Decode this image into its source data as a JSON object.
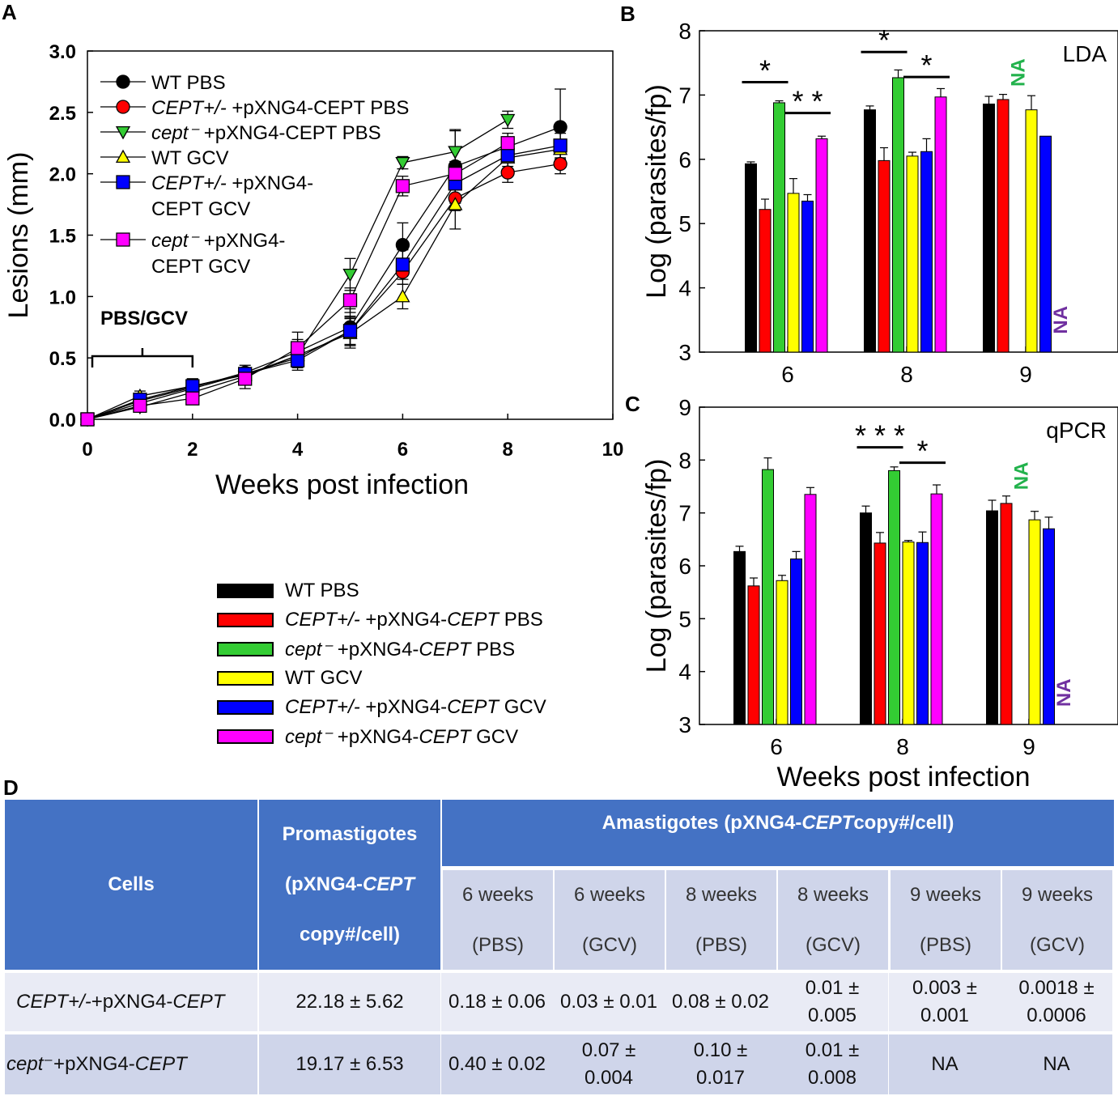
{
  "panels": {
    "a": {
      "letter": "A"
    },
    "b": {
      "letter": "B"
    },
    "c": {
      "letter": "C"
    },
    "d": {
      "letter": "D"
    }
  },
  "colors": {
    "wt_pbs": "#000000",
    "cept_het_pbs": "#ff0000",
    "cept_null_pbs": "#33cc33",
    "wt_gcv": "#ffff00",
    "cept_het_gcv": "#0000ff",
    "cept_null_gcv": "#ff00ff",
    "na_green": "#22b24c",
    "na_purple": "#7030a0",
    "table_header": "#4472c4"
  },
  "chart_data": [
    {
      "id": "A",
      "type": "line",
      "xlabel": "Weeks post infection",
      "ylabel": "Lesions (mm)",
      "xlim": [
        0,
        10
      ],
      "ylim": [
        0.0,
        3.0
      ],
      "xticks": [
        "0",
        "2",
        "4",
        "6",
        "8",
        "10"
      ],
      "yticks": [
        "0.0",
        "0.5",
        "1.0",
        "1.5",
        "2.0",
        "2.5",
        "3.0"
      ],
      "annotation": "PBS/GCV",
      "bracket_range": [
        0,
        2
      ],
      "series": [
        {
          "name": "WT PBS",
          "color_key": "wt_pbs",
          "marker": "circle",
          "x": [
            0,
            1,
            2,
            3,
            4,
            5,
            6,
            7,
            9
          ],
          "y": [
            0.0,
            0.15,
            0.26,
            0.38,
            0.55,
            0.75,
            1.42,
            2.06,
            2.38
          ],
          "err": [
            0,
            0.04,
            0.06,
            0.06,
            0.1,
            0.15,
            0.18,
            0.3,
            0.31
          ]
        },
        {
          "name": "CEPT+/- +pXNG4-CEPT PBS",
          "color_key": "cept_het_pbs",
          "marker": "circle",
          "x": [
            0,
            1,
            2,
            3,
            4,
            5,
            6,
            7,
            8,
            9
          ],
          "y": [
            0.0,
            0.13,
            0.25,
            0.37,
            0.5,
            0.72,
            1.2,
            1.8,
            2.01,
            2.08
          ],
          "err": [
            0,
            0.04,
            0.05,
            0.05,
            0.08,
            0.12,
            0.1,
            0.1,
            0.08,
            0.08
          ]
        },
        {
          "name": "cept⁻ +pXNG4-CEPT PBS",
          "color_key": "cept_null_pbs",
          "marker": "triangle-down",
          "x": [
            0,
            1,
            2,
            3,
            4,
            5,
            6,
            7,
            8
          ],
          "y": [
            0.0,
            0.1,
            0.22,
            0.35,
            0.52,
            1.18,
            2.09,
            2.18,
            2.44
          ],
          "err": [
            0,
            0.04,
            0.04,
            0.05,
            0.08,
            0.13,
            0.05,
            0.17,
            0.07
          ]
        },
        {
          "name": "WT GCV",
          "color_key": "wt_gcv",
          "marker": "triangle-up",
          "x": [
            0,
            1,
            2,
            3,
            4,
            5,
            6,
            7,
            8,
            9
          ],
          "y": [
            0.0,
            0.19,
            0.27,
            0.36,
            0.52,
            0.7,
            1.0,
            1.75,
            2.13,
            2.2
          ],
          "err": [
            0,
            0.04,
            0.06,
            0.06,
            0.09,
            0.12,
            0.1,
            0.2,
            0.09,
            0.08
          ]
        },
        {
          "name": "CEPT+/- +pXNG4-CEPT GCV",
          "color_key": "cept_het_gcv",
          "marker": "square",
          "x": [
            0,
            1,
            2,
            3,
            4,
            5,
            6,
            7,
            8,
            9
          ],
          "y": [
            0.0,
            0.16,
            0.27,
            0.37,
            0.48,
            0.72,
            1.26,
            1.92,
            2.15,
            2.23
          ],
          "err": [
            0,
            0.04,
            0.06,
            0.05,
            0.08,
            0.11,
            0.12,
            0.12,
            0.09,
            0.1
          ]
        },
        {
          "name": "cept⁻ +pXNG4-CEPT GCV",
          "color_key": "cept_null_gcv",
          "marker": "square",
          "x": [
            0,
            1,
            2,
            3,
            4,
            5,
            6,
            7,
            8
          ],
          "y": [
            0.0,
            0.11,
            0.17,
            0.33,
            0.58,
            0.97,
            1.9,
            2.0,
            2.25
          ],
          "err": [
            0,
            0.04,
            0.05,
            0.08,
            0.13,
            0.1,
            0.08,
            0.1,
            0.08
          ]
        }
      ],
      "legend": {
        "placement": "top-left",
        "entries": [
          {
            "marker": "circle",
            "color_key": "wt_pbs",
            "lines": [
              [
                {
                  "t": "WT PBS",
                  "i": false
                }
              ]
            ]
          },
          {
            "marker": "circle",
            "color_key": "cept_het_pbs",
            "lines": [
              [
                {
                  "t": "CEPT+/-",
                  "i": true
                },
                {
                  "t": " +pXNG4-CEPT PBS",
                  "i": false
                }
              ]
            ]
          },
          {
            "marker": "triangle-down",
            "color_key": "cept_null_pbs",
            "lines": [
              [
                {
                  "t": "cept⁻",
                  "i": true
                },
                {
                  "t": " +pXNG4-CEPT PBS",
                  "i": false
                }
              ]
            ]
          },
          {
            "marker": "triangle-up",
            "color_key": "wt_gcv",
            "lines": [
              [
                {
                  "t": "WT GCV",
                  "i": false
                }
              ]
            ]
          },
          {
            "marker": "square",
            "color_key": "cept_het_gcv",
            "lines": [
              [
                {
                  "t": "CEPT+/-",
                  "i": true
                },
                {
                  "t": " +pXNG4-",
                  "i": false
                }
              ],
              [
                {
                  "t": "CEPT GCV",
                  "i": false
                }
              ]
            ]
          },
          {
            "marker": "square",
            "color_key": "cept_null_gcv",
            "lines": [
              [
                {
                  "t": "cept⁻",
                  "i": true
                },
                {
                  "t": " +pXNG4-",
                  "i": false
                }
              ],
              [
                {
                  "t": "CEPT GCV",
                  "i": false
                }
              ]
            ]
          }
        ]
      }
    },
    {
      "id": "B",
      "type": "bar",
      "title": "LDA",
      "xlabel": "",
      "ylabel": "Log (parasites/fp)",
      "ylim": [
        3,
        8
      ],
      "yticks": [
        "3",
        "4",
        "5",
        "6",
        "7",
        "8"
      ],
      "categories": [
        "6",
        "8",
        "9"
      ],
      "series": [
        {
          "name": "WT PBS",
          "color_key": "wt_pbs",
          "values": [
            5.93,
            6.77,
            6.86
          ],
          "err": [
            0.03,
            0.06,
            0.12
          ]
        },
        {
          "name": "CEPT+/- +pXNG4-CEPT PBS",
          "color_key": "cept_het_pbs",
          "values": [
            5.22,
            5.98,
            6.93
          ],
          "err": [
            0.16,
            0.2,
            0.08
          ]
        },
        {
          "name": "cept⁻ +pXNG4-CEPT PBS",
          "color_key": "cept_null_pbs",
          "values": [
            6.88,
            7.27,
            null
          ],
          "err": [
            0.03,
            0.12,
            0
          ]
        },
        {
          "name": "WT GCV",
          "color_key": "wt_gcv",
          "values": [
            5.47,
            6.05,
            6.77
          ],
          "err": [
            0.23,
            0.06,
            0.22
          ]
        },
        {
          "name": "CEPT+/- +pXNG4-CEPT GCV",
          "color_key": "cept_het_gcv",
          "values": [
            5.35,
            6.12,
            6.36
          ],
          "err": [
            0.1,
            0.2,
            0
          ]
        },
        {
          "name": "cept⁻ +pXNG4-CEPT GCV",
          "color_key": "cept_null_gcv",
          "values": [
            6.32,
            6.97,
            null
          ],
          "err": [
            0.04,
            0.13,
            0
          ]
        }
      ],
      "na_labels": [
        {
          "text": "NA",
          "category": "9",
          "series": 2,
          "y": 7.35,
          "color_key": "na_green"
        },
        {
          "text": "NA",
          "category": "9",
          "series": 5,
          "y": 3.5,
          "color_key": "na_purple"
        }
      ],
      "significance": [
        {
          "text": "*",
          "category": "6",
          "from": 0,
          "to": 2,
          "y": 7.2
        },
        {
          "text": "* *",
          "category": "6",
          "from": 3,
          "to": 5,
          "y": 6.72
        },
        {
          "text": "*",
          "category": "8",
          "from": 0,
          "to": 2,
          "y": 7.67
        },
        {
          "text": "*",
          "category": "8",
          "from": 3,
          "to": 5,
          "y": 7.28
        }
      ]
    },
    {
      "id": "C",
      "type": "bar",
      "title": "qPCR",
      "xlabel": "Weeks post infection",
      "ylabel": "Log (parasites/fp)",
      "ylim": [
        3,
        9
      ],
      "yticks": [
        "3",
        "4",
        "5",
        "6",
        "7",
        "8",
        "9"
      ],
      "categories": [
        "6",
        "8",
        "9"
      ],
      "series": [
        {
          "name": "WT PBS",
          "color_key": "wt_pbs",
          "values": [
            6.27,
            7.0,
            7.04
          ],
          "err": [
            0.1,
            0.13,
            0.2
          ]
        },
        {
          "name": "CEPT+/- +pXNG4-CEPT PBS",
          "color_key": "cept_het_pbs",
          "values": [
            5.62,
            6.43,
            7.18
          ],
          "err": [
            0.15,
            0.2,
            0.14
          ]
        },
        {
          "name": "cept⁻ +pXNG4-CEPT PBS",
          "color_key": "cept_null_pbs",
          "values": [
            7.82,
            7.8,
            null
          ],
          "err": [
            0.22,
            0.07,
            0
          ]
        },
        {
          "name": "WT GCV",
          "color_key": "wt_gcv",
          "values": [
            5.72,
            6.45,
            6.87
          ],
          "err": [
            0.1,
            0.03,
            0.16
          ]
        },
        {
          "name": "CEPT+/- +pXNG4-CEPT GCV",
          "color_key": "cept_het_gcv",
          "values": [
            6.13,
            6.44,
            6.7
          ],
          "err": [
            0.14,
            0.2,
            0.22
          ]
        },
        {
          "name": "cept⁻ +pXNG4-CEPT GCV",
          "color_key": "cept_null_gcv",
          "values": [
            7.35,
            7.36,
            null
          ],
          "err": [
            0.13,
            0.17,
            0
          ]
        }
      ],
      "na_labels": [
        {
          "text": "NA",
          "category": "9",
          "series": 2,
          "y": 7.7,
          "color_key": "na_green"
        },
        {
          "text": "NA",
          "category": "9",
          "series": 5,
          "y": 3.6,
          "color_key": "na_purple"
        }
      ],
      "significance": [
        {
          "text": "* * *",
          "category": "8",
          "from": 0,
          "to": 2,
          "y": 8.24
        },
        {
          "text": "*",
          "category": "8",
          "from": 3,
          "to": 5,
          "y": 7.95
        }
      ]
    }
  ],
  "shared_legend": [
    {
      "color_key": "wt_pbs",
      "parts": [
        {
          "t": "WT PBS",
          "i": false
        }
      ]
    },
    {
      "color_key": "cept_het_pbs",
      "parts": [
        {
          "t": "CEPT+/-",
          "i": true
        },
        {
          "t": " +pXNG4-",
          "i": false
        },
        {
          "t": "CEPT",
          "i": true
        },
        {
          "t": " PBS",
          "i": false
        }
      ]
    },
    {
      "color_key": "cept_null_pbs",
      "parts": [
        {
          "t": "cept⁻",
          "i": true
        },
        {
          "t": " +pXNG4-",
          "i": false
        },
        {
          "t": "CEPT",
          "i": true
        },
        {
          "t": " PBS",
          "i": false
        }
      ]
    },
    {
      "color_key": "wt_gcv",
      "parts": [
        {
          "t": "WT GCV",
          "i": false
        }
      ]
    },
    {
      "color_key": "cept_het_gcv",
      "parts": [
        {
          "t": "CEPT+/-",
          "i": true
        },
        {
          "t": " +pXNG4-",
          "i": false
        },
        {
          "t": "CEPT",
          "i": true
        },
        {
          "t": " GCV",
          "i": false
        }
      ]
    },
    {
      "color_key": "cept_null_gcv",
      "parts": [
        {
          "t": "cept⁻",
          "i": true
        },
        {
          "t": " +pXNG4-",
          "i": false
        },
        {
          "t": "CEPT",
          "i": true
        },
        {
          "t": " GCV",
          "i": false
        }
      ]
    }
  ],
  "table": {
    "cells_header": "Cells",
    "promastigotes_header": [
      [
        {
          "t": "Promastigotes",
          "i": false
        }
      ],
      [
        {
          "t": "(pXNG4-",
          "i": false
        },
        {
          "t": "CEPT",
          "i": true
        }
      ],
      [
        {
          "t": "copy#/cell)",
          "i": false
        }
      ]
    ],
    "amastigotes_header": [
      {
        "t": "Amastigotes (pXNG4-",
        "i": false
      },
      {
        "t": "CEPT",
        "i": true
      },
      {
        "t": " copy#/cell)",
        "i": false
      }
    ],
    "subheaders": [
      [
        "6 weeks",
        "(PBS)"
      ],
      [
        "6 weeks",
        "(GCV)"
      ],
      [
        "8 weeks",
        "(PBS)"
      ],
      [
        "8 weeks",
        "(GCV)"
      ],
      [
        "9 weeks",
        "(PBS)"
      ],
      [
        "9 weeks",
        "(GCV)"
      ]
    ],
    "rows": [
      {
        "label": [
          {
            "t": "CEPT+/-",
            "i": true
          },
          {
            "t": " +pXNG4-",
            "i": false
          },
          {
            "t": "CEPT",
            "i": true
          }
        ],
        "promastigotes": "22.18 ± 5.62",
        "values": [
          [
            "0.18 ± 0.06"
          ],
          [
            "0.03 ± 0.01"
          ],
          [
            "0.08 ± 0.02"
          ],
          [
            "0.01 ±",
            "0.005"
          ],
          [
            "0.003 ±",
            "0.001"
          ],
          [
            "0.0018 ±",
            "0.0006"
          ]
        ]
      },
      {
        "label": [
          {
            "t": "cept",
            "i": true
          },
          {
            "t": "⁻",
            "i": false
          },
          {
            "t": " +pXNG4-",
            "i": false
          },
          {
            "t": "CEPT",
            "i": true
          }
        ],
        "promastigotes": "19.17 ± 6.53",
        "values": [
          [
            "0.40 ± 0.02"
          ],
          [
            "0.07 ±",
            "0.004"
          ],
          [
            "0.10 ±",
            "0.017"
          ],
          [
            "0.01 ±",
            "0.008"
          ],
          [
            "NA"
          ],
          [
            "NA"
          ]
        ]
      }
    ]
  }
}
